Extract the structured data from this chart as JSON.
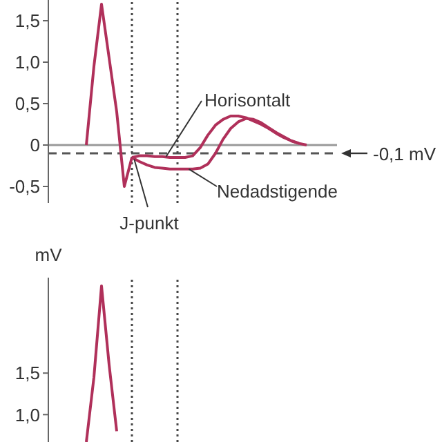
{
  "chart_data": [
    {
      "type": "line",
      "categories": [
        null,
        null,
        null,
        null,
        null,
        null,
        null,
        null,
        null,
        null,
        null,
        null,
        null,
        null,
        null,
        null,
        null,
        null,
        null,
        null,
        null,
        null,
        null,
        null,
        null,
        null,
        null,
        null,
        null,
        null,
        null,
        null
      ],
      "series": [
        {
          "color": "#b0305a",
          "values": [
            null,
            0,
            0.95,
            1.7,
            1.05,
            0.4,
            -0.5,
            -0.15,
            null,
            null,
            null,
            null,
            null,
            null,
            null,
            null,
            null,
            null,
            null,
            null,
            null,
            null,
            null,
            null,
            null,
            null,
            null,
            null,
            null,
            null,
            null,
            null
          ]
        },
        {
          "color": "#b0305a",
          "values": [
            null,
            null,
            null,
            null,
            null,
            null,
            null,
            -0.15,
            -0.13,
            -0.13,
            -0.14,
            -0.14,
            -0.15,
            -0.15,
            -0.15,
            -0.13,
            -0.03,
            0.12,
            0.24,
            0.31,
            0.35,
            0.35,
            0.33,
            0.29,
            0.25,
            0.2,
            0.14,
            0.09,
            0.05,
            0.02,
            0,
            null
          ]
        },
        {
          "color": "#b0305a",
          "values": [
            null,
            null,
            null,
            null,
            null,
            null,
            null,
            -0.15,
            -0.2,
            -0.24,
            -0.27,
            -0.28,
            -0.29,
            -0.29,
            -0.29,
            -0.29,
            -0.28,
            -0.23,
            -0.1,
            0.07,
            0.2,
            0.28,
            0.32,
            0.31,
            0.27,
            0.21,
            0.15,
            0.1,
            0.05,
            0.02,
            null,
            null
          ]
        }
      ],
      "ylim": [
        -0.7,
        1.75
      ],
      "yticks": [
        {
          "value": -0.5,
          "label": "-0,5"
        },
        0,
        {
          "value": 0.5,
          "label": "0,5"
        },
        {
          "value": 1,
          "label": "1,0"
        },
        {
          "value": 1.5,
          "label": "1,5"
        }
      ],
      "ref_lines": [
        {
          "axis": "y",
          "value": 0,
          "color": "#999999",
          "line_style": "solid"
        },
        {
          "axis": "y",
          "value": -0.1,
          "color": "#555555",
          "line_style": "dashed"
        }
      ],
      "annotations": [
        "Horisontalt",
        "Nedadstigende",
        "J-punkt",
        "-0,1 mV"
      ],
      "tick_labels": "y",
      "marker": "none",
      "line_style": "solid"
    },
    {
      "type": "line",
      "ylabel": "mV",
      "categories": [
        null,
        null,
        null,
        null,
        null,
        null,
        null,
        null,
        null,
        null,
        null,
        null,
        null,
        null,
        null,
        null,
        null,
        null,
        null,
        null,
        null,
        null,
        null,
        null,
        null,
        null,
        null,
        null,
        null,
        null,
        null,
        null
      ],
      "series": [
        {
          "color": "#b0305a",
          "values": [
            null,
            0.67,
            1.45,
            2.55,
            1.6,
            0.8,
            null,
            null,
            null,
            null,
            null,
            null,
            null,
            null,
            null,
            null,
            null,
            null,
            null,
            null,
            null,
            null,
            null,
            null,
            null,
            null,
            null,
            null,
            null,
            null,
            null,
            null
          ]
        }
      ],
      "ylim": [
        0.67,
        2.65
      ],
      "yticks": [
        {
          "value": 1,
          "label": "1,0"
        },
        {
          "value": 1.5,
          "label": "1,5"
        }
      ],
      "tick_labels": "y",
      "marker": "none",
      "line_style": "solid"
    }
  ]
}
